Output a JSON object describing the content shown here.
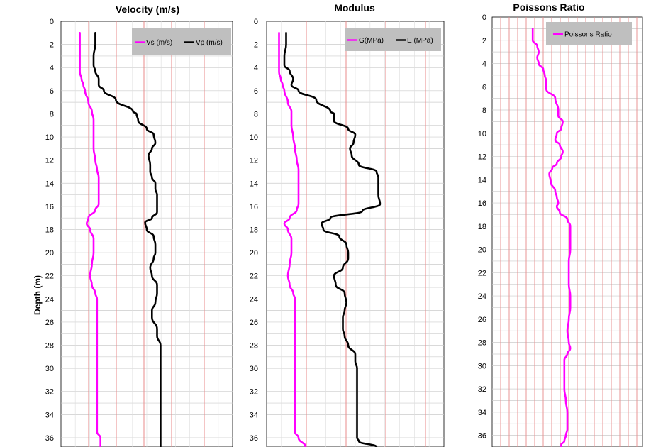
{
  "chart_data": {
    "type": "line",
    "y_axis_label": "Depth (m)",
    "panels": [
      {
        "id": "velocity",
        "title": "Velocity (m/s)",
        "ylim": [
          0,
          36.8
        ],
        "yticks": [
          0,
          2,
          4,
          6,
          8,
          10,
          12,
          14,
          16,
          18,
          20,
          22,
          24,
          26,
          28,
          30,
          32,
          34,
          36
        ],
        "legend": [
          "Vs  (m/s)",
          "Vp (m/s)"
        ],
        "series": [
          {
            "name": "Vs  (m/s)",
            "color": "#ff00ff",
            "x": [
              0.11,
              0.11,
              0.11,
              0.11,
              0.11,
              0.12,
              0.13,
              0.14,
              0.16,
              0.18,
              0.19,
              0.19,
              0.19,
              0.19,
              0.2,
              0.21,
              0.22,
              0.22,
              0.22,
              0.22,
              0.2,
              0.16,
              0.15,
              0.17,
              0.19,
              0.19,
              0.18,
              0.17,
              0.18,
              0.2,
              0.21,
              0.21,
              0.21,
              0.21,
              0.21,
              0.21,
              0.21,
              0.21,
              0.21,
              0.21,
              0.21,
              0.21,
              0.21,
              0.21,
              0.23,
              0.23,
              0.23,
              0.23,
              0.23,
              0.23,
              0.23,
              0.23,
              0.23,
              0.23,
              0.23,
              0.24
            ],
            "y": [
              1,
              2,
              3,
              4,
              4.4,
              5,
              5.5,
              6,
              7,
              7.8,
              8.5,
              9,
              10,
              11,
              12,
              12.8,
              13.5,
              14,
              15,
              15.8,
              16.3,
              17,
              17.5,
              18,
              18.8,
              20,
              21,
              22,
              22.8,
              23.5,
              24,
              25,
              26,
              27,
              28,
              28.5,
              29,
              30,
              31,
              32,
              33,
              34,
              35,
              35.5,
              36,
              36.8,
              37,
              37,
              37,
              37,
              37,
              37,
              37,
              37,
              37,
              37
            ]
          },
          {
            "name": "Vp (m/s)",
            "color": "#000000",
            "x": [
              0.2,
              0.2,
              0.19,
              0.19,
              0.2,
              0.22,
              0.22,
              0.25,
              0.32,
              0.42,
              0.44,
              0.45,
              0.5,
              0.54,
              0.55,
              0.53,
              0.51,
              0.52,
              0.52,
              0.53,
              0.55,
              0.55,
              0.56,
              0.56,
              0.56,
              0.56,
              0.53,
              0.49,
              0.5,
              0.54,
              0.55,
              0.55,
              0.54,
              0.52,
              0.53,
              0.56,
              0.56,
              0.55,
              0.53,
              0.53,
              0.56,
              0.56,
              0.58,
              0.58,
              0.58,
              0.58,
              0.58,
              0.58,
              0.58,
              0.58,
              0.58,
              0.58,
              0.58,
              0.58,
              0.58,
              0.58
            ],
            "y": [
              1,
              2,
              3,
              3.8,
              4.3,
              5,
              5.5,
              6,
              6.8,
              7.8,
              8,
              8.6,
              9.3,
              9.8,
              10.5,
              11,
              11.6,
              12.4,
              13,
              13.5,
              14,
              14.5,
              15,
              15.5,
              16,
              16.5,
              17,
              17.4,
              18,
              18.6,
              19.3,
              20,
              20.5,
              21.3,
              22,
              22.8,
              23.5,
              24.3,
              25,
              25.6,
              26.6,
              27.2,
              28,
              29,
              30,
              31,
              32,
              33,
              34,
              35,
              35.5,
              36,
              36.8,
              37,
              37,
              37
            ]
          }
        ]
      },
      {
        "id": "modulus",
        "title": "Modulus",
        "ylim": [
          0,
          36.8
        ],
        "yticks": [
          0,
          2,
          4,
          6,
          8,
          10,
          12,
          14,
          16,
          18,
          20,
          22,
          24,
          26,
          28,
          30,
          32,
          34,
          36
        ],
        "legend": [
          "G(MPa)",
          "E (MPa)"
        ],
        "series": [
          {
            "name": "G(MPa)",
            "color": "#ff00ff",
            "x": [
              0.07,
              0.07,
              0.07,
              0.07,
              0.07,
              0.08,
              0.09,
              0.1,
              0.12,
              0.14,
              0.14,
              0.14,
              0.15,
              0.16,
              0.17,
              0.18,
              0.18,
              0.18,
              0.18,
              0.18,
              0.17,
              0.13,
              0.1,
              0.12,
              0.14,
              0.14,
              0.13,
              0.12,
              0.13,
              0.15,
              0.16,
              0.16,
              0.16,
              0.16,
              0.16,
              0.16,
              0.16,
              0.16,
              0.16,
              0.16,
              0.16,
              0.16,
              0.16,
              0.16,
              0.18,
              0.22,
              0.22,
              0.22,
              0.22,
              0.22,
              0.22,
              0.22,
              0.22,
              0.22,
              0.22,
              0.22
            ],
            "y": [
              1,
              2,
              3,
              4,
              4.4,
              5,
              5.5,
              6,
              7,
              7.8,
              8.5,
              9,
              10,
              11,
              12,
              12.8,
              13.5,
              14,
              15,
              15.8,
              16.3,
              17,
              17.5,
              18,
              18.8,
              20,
              21,
              22,
              22.8,
              23.5,
              24,
              25,
              26,
              27,
              28,
              28.5,
              29,
              30,
              31,
              32,
              33,
              34,
              35,
              35.5,
              36,
              36.8,
              37,
              37,
              37,
              37,
              37,
              37,
              37,
              37,
              37,
              37
            ]
          },
          {
            "name": "E (MPa)",
            "color": "#000000",
            "x": [
              0.11,
              0.11,
              0.1,
              0.1,
              0.13,
              0.15,
              0.14,
              0.18,
              0.28,
              0.36,
              0.38,
              0.38,
              0.46,
              0.5,
              0.49,
              0.47,
              0.48,
              0.52,
              0.62,
              0.63,
              0.63,
              0.63,
              0.63,
              0.64,
              0.54,
              0.36,
              0.31,
              0.32,
              0.41,
              0.45,
              0.46,
              0.46,
              0.43,
              0.38,
              0.39,
              0.44,
              0.45,
              0.44,
              0.43,
              0.43,
              0.44,
              0.46,
              0.5,
              0.5,
              0.51,
              0.51,
              0.51,
              0.51,
              0.51,
              0.51,
              0.51,
              0.51,
              0.52,
              0.62,
              0.62,
              0.62
            ],
            "y": [
              1,
              2,
              3,
              3.8,
              4.3,
              5,
              5.5,
              6,
              6.8,
              7.8,
              8,
              8.6,
              9.3,
              9.8,
              10.5,
              11,
              11.6,
              12.4,
              13,
              13.5,
              14,
              14.5,
              15,
              15.8,
              16.4,
              17,
              17.5,
              18,
              18.6,
              19.3,
              20,
              20.5,
              21.3,
              22,
              22.8,
              23.5,
              24.3,
              25,
              25.6,
              26.6,
              27.2,
              28,
              28.8,
              29.4,
              30,
              31,
              32,
              33,
              34,
              35,
              35.5,
              36,
              36.3,
              36.8,
              37,
              37
            ]
          }
        ]
      },
      {
        "id": "poissons",
        "title": "Poissons Ratio",
        "ylim": [
          0,
          37
        ],
        "yticks": [
          0,
          2,
          4,
          6,
          8,
          10,
          12,
          14,
          16,
          18,
          20,
          22,
          24,
          26,
          28,
          30,
          32,
          34,
          36
        ],
        "legend": [
          "Poissons Ratio"
        ],
        "series": [
          {
            "name": "Poissons Ratio",
            "color": "#ff00ff",
            "x": [
              0.27,
              0.27,
              0.3,
              0.31,
              0.3,
              0.31,
              0.34,
              0.35,
              0.36,
              0.36,
              0.36,
              0.42,
              0.44,
              0.44,
              0.47,
              0.46,
              0.43,
              0.42,
              0.45,
              0.47,
              0.46,
              0.43,
              0.4,
              0.38,
              0.39,
              0.42,
              0.43,
              0.44,
              0.43,
              0.45,
              0.5,
              0.52,
              0.52,
              0.52,
              0.51,
              0.51,
              0.51,
              0.52,
              0.52,
              0.51,
              0.5,
              0.51,
              0.52,
              0.5,
              0.48,
              0.48,
              0.48,
              0.48,
              0.49,
              0.5,
              0.5,
              0.5,
              0.49,
              0.48,
              0.46,
              0.46
            ],
            "y": [
              1,
              2,
              2.5,
              3,
              3.5,
              4,
              4.5,
              5,
              5.5,
              6,
              6.2,
              7,
              8,
              8.5,
              9,
              9.6,
              10,
              10.6,
              11,
              11.6,
              12,
              12.6,
              13,
              13.5,
              14.2,
              15,
              15.5,
              16,
              16.3,
              16.8,
              17.4,
              18,
              19,
              20,
              21,
              22,
              23,
              24,
              25,
              26,
              27,
              28,
              28.5,
              29,
              29.5,
              30,
              31,
              32,
              33,
              34,
              35,
              35.5,
              36,
              36.5,
              36.8,
              37
            ]
          }
        ]
      }
    ]
  }
}
